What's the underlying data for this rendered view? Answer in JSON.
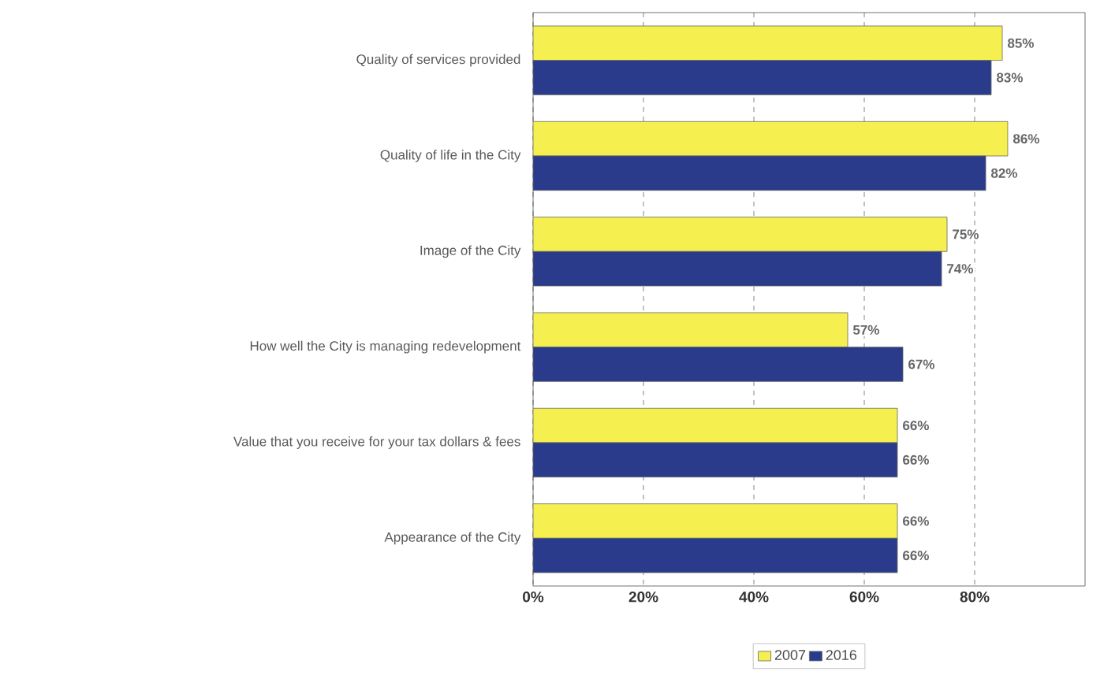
{
  "chart_data": {
    "type": "bar",
    "orientation": "horizontal",
    "categories": [
      "Quality of services provided",
      "Quality of life in the City",
      "Image of the City",
      "How well the City is managing redevelopment",
      "Value that you receive for your tax dollars & fees",
      "Appearance of the City"
    ],
    "series": [
      {
        "name": "2007",
        "color": "#f5f04f",
        "values": [
          85,
          86,
          75,
          57,
          66,
          66
        ],
        "value_labels": [
          "85%",
          "86%",
          "75%",
          "57%",
          "66%",
          "66%"
        ]
      },
      {
        "name": "2016",
        "color": "#2a3b8c",
        "values": [
          83,
          82,
          74,
          67,
          66,
          66
        ],
        "value_labels": [
          "83%",
          "82%",
          "74%",
          "67%",
          "66%",
          "66%"
        ]
      }
    ],
    "xlim": [
      0,
      100
    ],
    "xticks": [
      {
        "value": 0,
        "label": "0%"
      },
      {
        "value": 20,
        "label": "20%"
      },
      {
        "value": 40,
        "label": "40%"
      },
      {
        "value": 60,
        "label": "60%"
      },
      {
        "value": 80,
        "label": "80%"
      }
    ],
    "grid": "x",
    "legend": "bottom"
  }
}
